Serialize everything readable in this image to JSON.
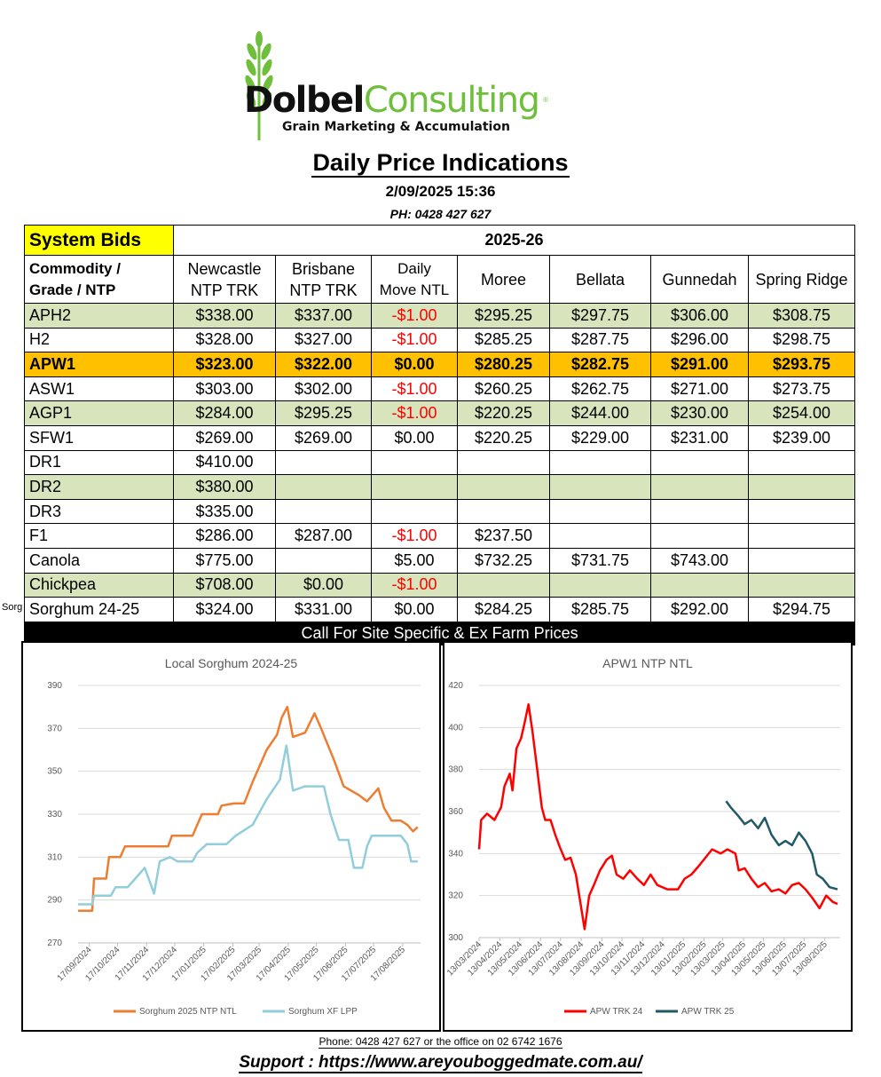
{
  "logo": {
    "word1": "Dolbel",
    "word2": "Consulting",
    "reg": "®",
    "tagline": "Grain Marketing & Accumulation"
  },
  "title": "Daily Price Indications",
  "datetime": "2/09/2025 15:36",
  "phone": "PH: 0428 427 627",
  "table": {
    "system_bids": "System Bids",
    "season": "2025-26",
    "headers": [
      [
        "Commodity /",
        "Grade / NTP"
      ],
      [
        "Newcastle",
        "NTP TRK"
      ],
      [
        "Brisbane",
        "NTP TRK"
      ],
      [
        "Daily",
        "Move NTL"
      ],
      [
        "Moree"
      ],
      [
        "Bellata"
      ],
      [
        "Gunnedah"
      ],
      [
        "Spring Ridge"
      ]
    ],
    "rows": [
      {
        "cells": [
          "APH2",
          "$338.00",
          "$337.00",
          "-$1.00",
          "$295.25",
          "$297.75",
          "$306.00",
          "$308.75"
        ],
        "style": "green"
      },
      {
        "cells": [
          "H2",
          "$328.00",
          "$327.00",
          "-$1.00",
          "$285.25",
          "$287.75",
          "$296.00",
          "$298.75"
        ],
        "style": "white"
      },
      {
        "cells": [
          "APW1",
          "$323.00",
          "$322.00",
          "$0.00",
          "$280.25",
          "$282.75",
          "$291.00",
          "$293.75"
        ],
        "style": "orange"
      },
      {
        "cells": [
          "ASW1",
          "$303.00",
          "$302.00",
          "-$1.00",
          "$260.25",
          "$262.75",
          "$271.00",
          "$273.75"
        ],
        "style": "white"
      },
      {
        "cells": [
          "AGP1",
          "$284.00",
          "$295.25",
          "-$1.00",
          "$220.25",
          "$244.00",
          "$230.00",
          "$254.00"
        ],
        "style": "green"
      },
      {
        "cells": [
          "SFW1",
          "$269.00",
          "$269.00",
          "$0.00",
          "$220.25",
          "$229.00",
          "$231.00",
          "$239.00"
        ],
        "style": "white"
      },
      {
        "cells": [
          "DR1",
          "$410.00",
          "",
          "",
          "",
          "",
          "",
          ""
        ],
        "style": "white"
      },
      {
        "cells": [
          "DR2",
          "$380.00",
          "",
          "",
          "",
          "",
          "",
          ""
        ],
        "style": "green"
      },
      {
        "cells": [
          "DR3",
          "$335.00",
          "",
          "",
          "",
          "",
          "",
          ""
        ],
        "style": "white"
      },
      {
        "cells": [
          "F1",
          "$286.00",
          "$287.00",
          "-$1.00",
          "$237.50",
          "",
          "",
          ""
        ],
        "style": "white"
      },
      {
        "cells": [
          "Canola",
          "$775.00",
          "",
          "$5.00",
          "$732.25",
          "$731.75",
          "$743.00",
          ""
        ],
        "style": "white"
      },
      {
        "cells": [
          "Chickpea",
          "$708.00",
          "$0.00",
          "-$1.00",
          "",
          "",
          "",
          ""
        ],
        "style": "green"
      },
      {
        "cells": [
          "Sorghum 24-25",
          "$324.00",
          "$331.00",
          "$0.00",
          "$284.25",
          "$285.75",
          "$292.00",
          "$294.75"
        ],
        "style": "white"
      }
    ],
    "sorg_cut": "Sorg",
    "call_banner": "Call For Site Specific & Ex Farm Prices"
  },
  "colors": {
    "green": "#d8e4bc",
    "orange": "#ffc000",
    "yellow": "#ffff00",
    "negative": "#ff0000",
    "sorghum_ntp": "#ed7d31",
    "sorghum_lpp": "#92cddc",
    "apw24": "#ff0000",
    "apw25": "#215968"
  },
  "chart_data": [
    {
      "type": "line",
      "title": "Local Sorghum 2024-25",
      "ylim": [
        270,
        390
      ],
      "yticks": [
        270,
        290,
        310,
        330,
        350,
        370,
        390
      ],
      "xlim": [
        "2024-09-05",
        "2025-09-05"
      ],
      "xticks": [
        "17/09/2024",
        "17/10/2024",
        "17/11/2024",
        "17/12/2024",
        "17/01/2025",
        "17/02/2025",
        "17/03/2025",
        "17/04/2025",
        "17/05/2025",
        "17/06/2025",
        "17/07/2025",
        "17/08/2025"
      ],
      "series": [
        {
          "name": "Sorghum  2025 NTP NTL",
          "color": "#ed7d31",
          "points": [
            [
              "2024-09-05",
              285
            ],
            [
              "2024-09-20",
              285
            ],
            [
              "2024-09-22",
              300
            ],
            [
              "2024-10-05",
              300
            ],
            [
              "2024-10-08",
              310
            ],
            [
              "2024-10-20",
              310
            ],
            [
              "2024-10-25",
              315
            ],
            [
              "2024-11-15",
              315
            ],
            [
              "2024-12-10",
              315
            ],
            [
              "2024-12-14",
              320
            ],
            [
              "2025-01-05",
              320
            ],
            [
              "2025-01-10",
              325
            ],
            [
              "2025-01-15",
              330
            ],
            [
              "2025-02-01",
              330
            ],
            [
              "2025-02-05",
              334
            ],
            [
              "2025-02-18",
              335
            ],
            [
              "2025-03-01",
              335
            ],
            [
              "2025-03-10",
              345
            ],
            [
              "2025-03-25",
              360
            ],
            [
              "2025-04-05",
              367
            ],
            [
              "2025-04-10",
              375
            ],
            [
              "2025-04-16",
              380
            ],
            [
              "2025-04-22",
              366
            ],
            [
              "2025-05-05",
              368
            ],
            [
              "2025-05-15",
              377
            ],
            [
              "2025-05-22",
              370
            ],
            [
              "2025-06-05",
              355
            ],
            [
              "2025-06-15",
              343
            ],
            [
              "2025-07-01",
              339
            ],
            [
              "2025-07-10",
              336
            ],
            [
              "2025-07-22",
              342
            ],
            [
              "2025-07-28",
              333
            ],
            [
              "2025-08-05",
              327
            ],
            [
              "2025-08-15",
              327
            ],
            [
              "2025-08-22",
              325
            ],
            [
              "2025-08-28",
              322
            ],
            [
              "2025-09-02",
              324
            ]
          ]
        },
        {
          "name": "Sorghum XF LPP",
          "color": "#92cddc",
          "points": [
            [
              "2024-09-05",
              288
            ],
            [
              "2024-09-20",
              288
            ],
            [
              "2024-09-22",
              292
            ],
            [
              "2024-10-10",
              292
            ],
            [
              "2024-10-15",
              296
            ],
            [
              "2024-10-28",
              296
            ],
            [
              "2024-11-05",
              300
            ],
            [
              "2024-11-15",
              305
            ],
            [
              "2024-11-25",
              293
            ],
            [
              "2024-12-01",
              308
            ],
            [
              "2024-12-12",
              310
            ],
            [
              "2024-12-20",
              308
            ],
            [
              "2025-01-05",
              308
            ],
            [
              "2025-01-10",
              312
            ],
            [
              "2025-01-20",
              316
            ],
            [
              "2025-02-10",
              316
            ],
            [
              "2025-02-20",
              320
            ],
            [
              "2025-03-10",
              325
            ],
            [
              "2025-03-25",
              337
            ],
            [
              "2025-04-08",
              346
            ],
            [
              "2025-04-15",
              362
            ],
            [
              "2025-04-22",
              341
            ],
            [
              "2025-05-05",
              343
            ],
            [
              "2025-05-25",
              343
            ],
            [
              "2025-06-01",
              330
            ],
            [
              "2025-06-10",
              318
            ],
            [
              "2025-06-20",
              318
            ],
            [
              "2025-06-26",
              305
            ],
            [
              "2025-07-05",
              305
            ],
            [
              "2025-07-10",
              315
            ],
            [
              "2025-07-15",
              320
            ],
            [
              "2025-08-05",
              320
            ],
            [
              "2025-08-15",
              320
            ],
            [
              "2025-08-22",
              316
            ],
            [
              "2025-08-26",
              308
            ],
            [
              "2025-09-02",
              308
            ]
          ]
        }
      ],
      "legend": "bottom"
    },
    {
      "type": "line",
      "title": "APW1 NTP NTL",
      "ylim": [
        300,
        420
      ],
      "yticks": [
        300,
        320,
        340,
        360,
        380,
        400,
        420
      ],
      "xlim": [
        "2024-03-13",
        "2025-09-05"
      ],
      "xticks": [
        "13/03/2024",
        "13/04/2024",
        "13/05/2024",
        "13/06/2024",
        "13/07/2024",
        "13/08/2024",
        "13/09/2024",
        "13/10/2024",
        "13/11/2024",
        "13/12/2024",
        "13/01/2025",
        "13/02/2025",
        "13/03/2025",
        "13/04/2025",
        "13/05/2025",
        "13/06/2025",
        "13/07/2025",
        "13/08/2025"
      ],
      "series": [
        {
          "name": "APW TRK 24",
          "color": "#ff0000",
          "points": [
            [
              "2024-03-13",
              342
            ],
            [
              "2024-03-16",
              356
            ],
            [
              "2024-03-25",
              359
            ],
            [
              "2024-04-05",
              356
            ],
            [
              "2024-04-15",
              362
            ],
            [
              "2024-04-20",
              372
            ],
            [
              "2024-04-28",
              378
            ],
            [
              "2024-05-02",
              370
            ],
            [
              "2024-05-08",
              390
            ],
            [
              "2024-05-15",
              395
            ],
            [
              "2024-05-20",
              402
            ],
            [
              "2024-05-26",
              411
            ],
            [
              "2024-06-01",
              398
            ],
            [
              "2024-06-08",
              380
            ],
            [
              "2024-06-15",
              362
            ],
            [
              "2024-06-20",
              356
            ],
            [
              "2024-06-28",
              356
            ],
            [
              "2024-07-05",
              349
            ],
            [
              "2024-07-12",
              343
            ],
            [
              "2024-07-20",
              337
            ],
            [
              "2024-07-28",
              338
            ],
            [
              "2024-08-05",
              330
            ],
            [
              "2024-08-12",
              316
            ],
            [
              "2024-08-18",
              304
            ],
            [
              "2024-08-25",
              320
            ],
            [
              "2024-09-01",
              325
            ],
            [
              "2024-09-10",
              332
            ],
            [
              "2024-09-20",
              337
            ],
            [
              "2024-09-28",
              339
            ],
            [
              "2024-10-05",
              330
            ],
            [
              "2024-10-15",
              328
            ],
            [
              "2024-10-25",
              332
            ],
            [
              "2024-11-05",
              328
            ],
            [
              "2024-11-15",
              325
            ],
            [
              "2024-11-25",
              330
            ],
            [
              "2024-12-05",
              325
            ],
            [
              "2024-12-20",
              323
            ],
            [
              "2025-01-05",
              323
            ],
            [
              "2025-01-15",
              328
            ],
            [
              "2025-01-25",
              330
            ],
            [
              "2025-02-05",
              334
            ],
            [
              "2025-02-15",
              338
            ],
            [
              "2025-02-25",
              342
            ],
            [
              "2025-03-10",
              340
            ],
            [
              "2025-03-20",
              342
            ],
            [
              "2025-04-01",
              340
            ],
            [
              "2025-04-06",
              332
            ],
            [
              "2025-04-15",
              333
            ],
            [
              "2025-04-25",
              328
            ],
            [
              "2025-05-05",
              324
            ],
            [
              "2025-05-15",
              326
            ],
            [
              "2025-05-25",
              322
            ],
            [
              "2025-06-05",
              323
            ],
            [
              "2025-06-15",
              321
            ],
            [
              "2025-06-25",
              325
            ],
            [
              "2025-07-05",
              326
            ],
            [
              "2025-07-15",
              323
            ],
            [
              "2025-07-25",
              319
            ],
            [
              "2025-08-05",
              314
            ],
            [
              "2025-08-15",
              320
            ],
            [
              "2025-08-25",
              317
            ],
            [
              "2025-09-01",
              316
            ]
          ]
        },
        {
          "name": "APW TRK 25",
          "color": "#215968",
          "points": [
            [
              "2025-03-18",
              365
            ],
            [
              "2025-03-25",
              362
            ],
            [
              "2025-04-05",
              358
            ],
            [
              "2025-04-15",
              354
            ],
            [
              "2025-04-25",
              356
            ],
            [
              "2025-05-05",
              352
            ],
            [
              "2025-05-15",
              357
            ],
            [
              "2025-05-25",
              349
            ],
            [
              "2025-06-05",
              344
            ],
            [
              "2025-06-15",
              346
            ],
            [
              "2025-06-25",
              344
            ],
            [
              "2025-07-05",
              350
            ],
            [
              "2025-07-15",
              346
            ],
            [
              "2025-07-25",
              340
            ],
            [
              "2025-08-01",
              330
            ],
            [
              "2025-08-10",
              328
            ],
            [
              "2025-08-20",
              324
            ],
            [
              "2025-09-01",
              323
            ]
          ]
        }
      ],
      "legend": "bottom"
    }
  ],
  "footer": {
    "phone_line": "Phone: 0428 427 627 or the office on 02 6742 1676",
    "support": "Support : https://www.areyouboggedmate.com.au/"
  }
}
